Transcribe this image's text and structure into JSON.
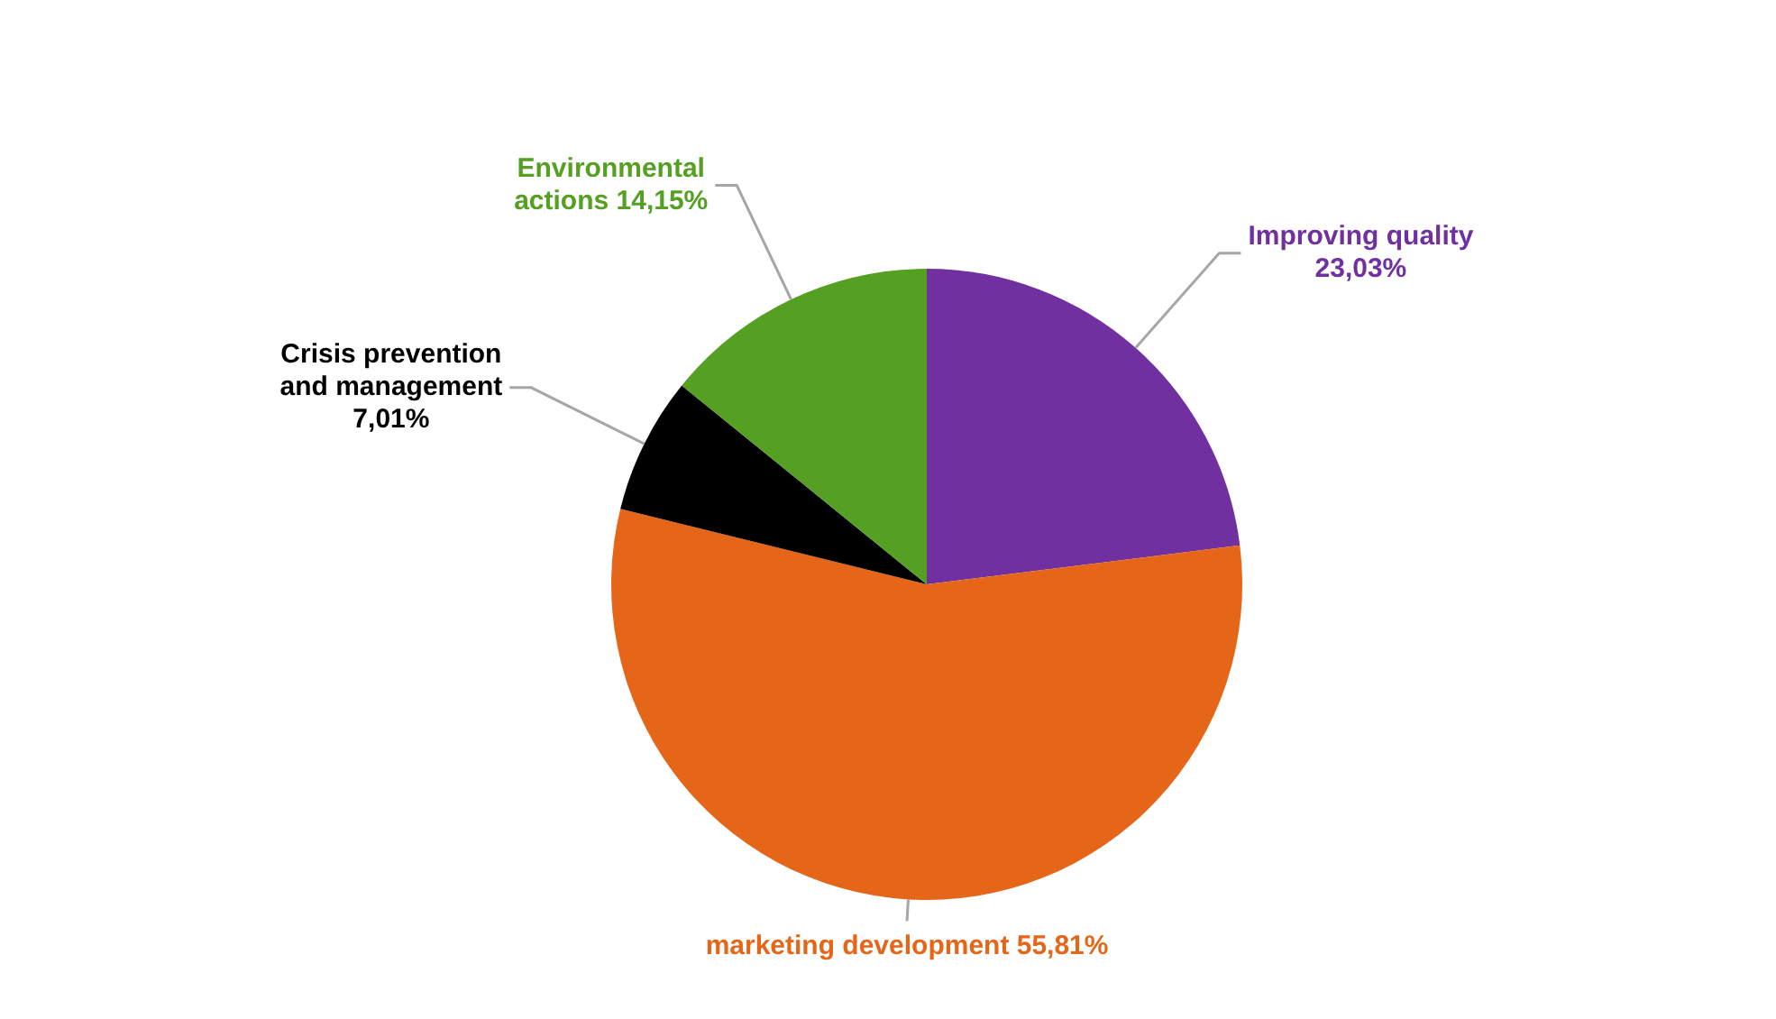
{
  "chart_data": {
    "type": "pie",
    "categories": [
      "Improving quality",
      "marketing development",
      "Crisis prevention and management",
      "Environmental actions"
    ],
    "values": [
      23.03,
      55.81,
      7.01,
      14.15
    ],
    "colors": [
      "#7030a0",
      "#e66619",
      "#000000",
      "#55a023"
    ],
    "value_labels": [
      "23,03%",
      "55,81%",
      "7,01%",
      "14,15%"
    ]
  }
}
